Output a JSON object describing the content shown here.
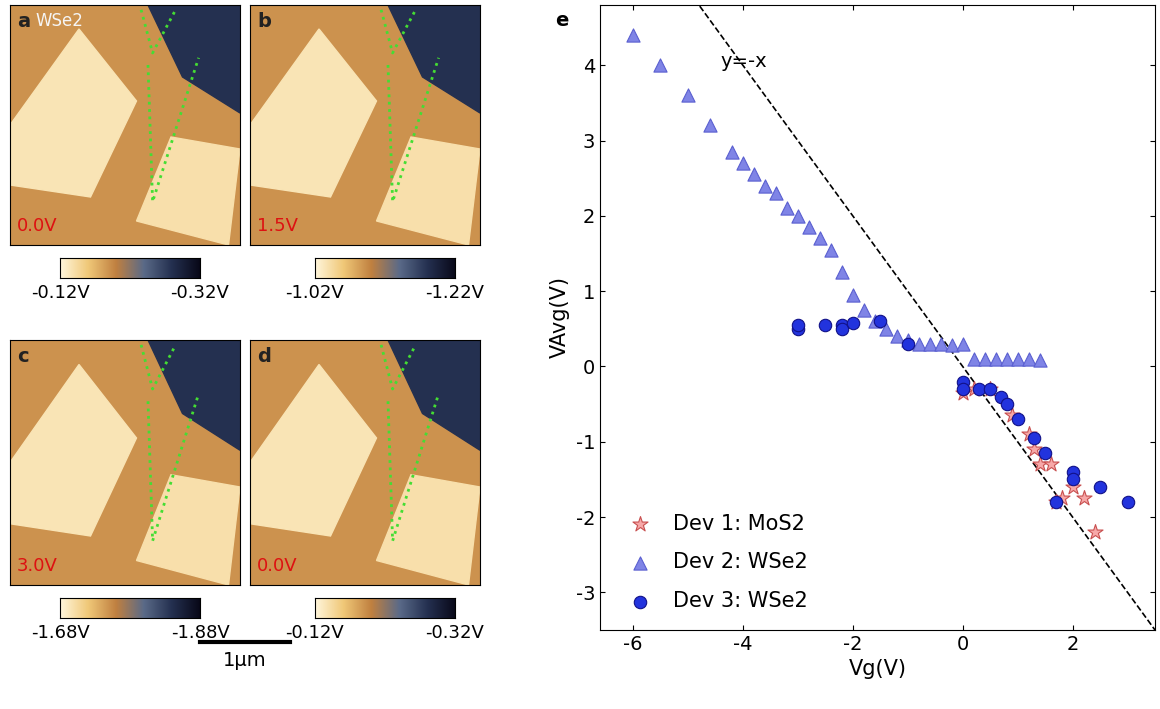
{
  "chart_data": [
    {
      "type": "image",
      "panel": "a",
      "title": "WSe2",
      "annotation": "0.0V",
      "colorbar": {
        "range": [
          -0.12,
          -0.32
        ],
        "ticks": [
          {
            "value": -0.12,
            "label": "-0.12V"
          },
          {
            "value": -0.32,
            "label": "-0.32V"
          }
        ]
      }
    },
    {
      "type": "image",
      "panel": "b",
      "annotation": "1.5V",
      "colorbar": {
        "range": [
          -1.02,
          -1.22
        ],
        "ticks": [
          {
            "value": -1.02,
            "label": "-1.02V"
          },
          {
            "value": -1.22,
            "label": "-1.22V"
          }
        ]
      }
    },
    {
      "type": "image",
      "panel": "c",
      "annotation": "3.0V",
      "colorbar": {
        "range": [
          -1.68,
          -1.88
        ],
        "ticks": [
          {
            "value": -1.68,
            "label": "-1.68V"
          },
          {
            "value": -1.88,
            "label": "-1.88V"
          }
        ]
      }
    },
    {
      "type": "image",
      "panel": "d",
      "annotation": "0.0V",
      "colorbar": {
        "range": [
          -0.12,
          -0.32
        ],
        "ticks": [
          {
            "value": -0.12,
            "label": "-0.12V"
          },
          {
            "value": -0.32,
            "label": "-0.32V"
          }
        ]
      }
    },
    {
      "type": "scatter",
      "panel": "e",
      "x_label": "Vg(V)",
      "y_label": "VAvg(V)",
      "xlim": [
        -6.6,
        3.5
      ],
      "ylim": [
        -3.5,
        4.8
      ],
      "xticks": [
        -6,
        -4,
        -2,
        0,
        2
      ],
      "yticks": [
        -3,
        -2,
        -1,
        0,
        1,
        2,
        3,
        4
      ],
      "legend": "lower left",
      "reference_line": {
        "label": "y=-x",
        "type": "line",
        "line_style": "dashed",
        "color": "#000000",
        "x": [
          -6.6,
          3.5
        ],
        "values": [
          6.6,
          -3.5
        ]
      },
      "series": [
        {
          "name": "Dev 1: MoS2",
          "marker": "star",
          "color": "#f7a8a8",
          "x": [
            0,
            0.2,
            0.5,
            0.9,
            1.2,
            1.3,
            1.4,
            1.6,
            1.7,
            1.8,
            2.0,
            2.2,
            2.4
          ],
          "values": [
            -0.35,
            -0.3,
            -0.3,
            -0.65,
            -0.9,
            -1.1,
            -1.3,
            -1.3,
            -1.8,
            -1.75,
            -1.6,
            -1.75,
            -2.2
          ]
        },
        {
          "name": "Dev 2: WSe2",
          "marker": "triangle",
          "color": "#7f84e6",
          "x": [
            -6.0,
            -5.5,
            -5.0,
            -4.6,
            -4.2,
            -4.0,
            -3.8,
            -3.6,
            -3.4,
            -3.2,
            -3.0,
            -2.8,
            -2.6,
            -2.4,
            -2.2,
            -2.0,
            -1.8,
            -1.6,
            -1.4,
            -1.2,
            -1.0,
            -0.8,
            -0.6,
            -0.4,
            -0.2,
            0,
            0.2,
            0.4,
            0.6,
            0.8,
            1.0,
            1.2,
            1.4
          ],
          "values": [
            4.4,
            4.0,
            3.6,
            3.2,
            2.85,
            2.7,
            2.55,
            2.4,
            2.3,
            2.1,
            2.0,
            1.85,
            1.7,
            1.55,
            1.25,
            0.95,
            0.75,
            0.6,
            0.5,
            0.4,
            0.35,
            0.3,
            0.3,
            0.3,
            0.28,
            0.3,
            0.1,
            0.1,
            0.1,
            0.1,
            0.1,
            0.1,
            0.08
          ]
        },
        {
          "name": "Dev 3: WSe2",
          "marker": "circle",
          "color": "#2233dd",
          "x": [
            -3.0,
            -3.0,
            -2.5,
            -2.2,
            -2.2,
            -2.0,
            -1.5,
            -1.0,
            0,
            0,
            0.3,
            0.5,
            0.7,
            0.8,
            1.0,
            1.3,
            1.5,
            1.7,
            2.0,
            2.0,
            2.5,
            3.0
          ],
          "values": [
            0.5,
            0.55,
            0.55,
            0.55,
            0.5,
            0.58,
            0.6,
            0.3,
            -0.2,
            -0.3,
            -0.3,
            -0.3,
            -0.4,
            -0.5,
            -0.7,
            -0.95,
            -1.15,
            -1.8,
            -1.4,
            -1.5,
            -1.6,
            -1.8
          ]
        }
      ]
    }
  ],
  "figure_texts": {
    "scale_bar": "1μm"
  }
}
